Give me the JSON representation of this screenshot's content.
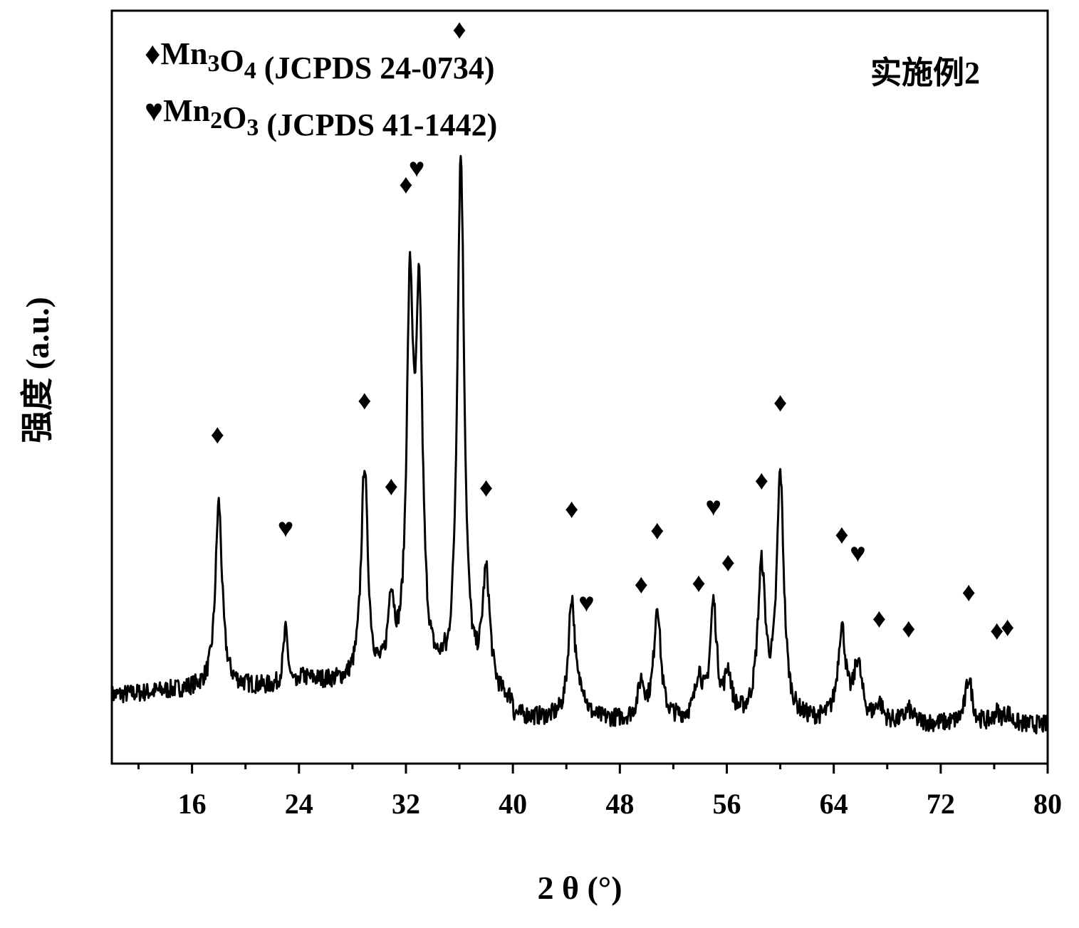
{
  "chart_data": {
    "type": "line",
    "title": "",
    "annotation": "实施例2",
    "xlabel": "2 θ (°)",
    "ylabel": "强度 (a.u.)",
    "xlim": [
      10,
      80
    ],
    "ylim": [
      0,
      100
    ],
    "x_ticks": [
      "16",
      "24",
      "32",
      "40",
      "48",
      "56",
      "64",
      "72",
      "80"
    ],
    "x_tick_values": [
      16,
      24,
      32,
      40,
      48,
      56,
      64,
      72,
      80
    ],
    "y_ticks_shown": false,
    "legend_position": "top-left",
    "legend": [
      {
        "symbol": "♦",
        "formula_parts": [
          [
            "Mn",
            false
          ],
          [
            "3",
            true
          ],
          [
            "O",
            false
          ],
          [
            "4",
            true
          ]
        ],
        "reference": " (JCPDS 24-0734)"
      },
      {
        "symbol": "♥",
        "formula_parts": [
          [
            "Mn",
            false
          ],
          [
            "2",
            true
          ],
          [
            "O",
            false
          ],
          [
            "3",
            true
          ]
        ],
        "reference": " (JCPDS 41-1442)"
      }
    ],
    "peaks": [
      {
        "x": 18.0,
        "y": 26.0,
        "w": 0.3
      },
      {
        "x": 23.0,
        "y": 8.0,
        "w": 0.22
      },
      {
        "x": 28.9,
        "y": 30.5,
        "w": 0.3
      },
      {
        "x": 30.9,
        "y": 11.0,
        "w": 0.28
      },
      {
        "x": 32.3,
        "y": 52.0,
        "w": 0.3
      },
      {
        "x": 33.0,
        "y": 50.0,
        "w": 0.3
      },
      {
        "x": 36.1,
        "y": 76.0,
        "w": 0.32
      },
      {
        "x": 38.0,
        "y": 17.0,
        "w": 0.35
      },
      {
        "x": 44.4,
        "y": 17.0,
        "w": 0.3
      },
      {
        "x": 45.2,
        "y": 3.0,
        "w": 0.3
      },
      {
        "x": 49.6,
        "y": 5.0,
        "w": 0.3
      },
      {
        "x": 50.8,
        "y": 16.0,
        "w": 0.3
      },
      {
        "x": 53.9,
        "y": 6.0,
        "w": 0.3
      },
      {
        "x": 55.0,
        "y": 16.0,
        "w": 0.3
      },
      {
        "x": 56.1,
        "y": 6.0,
        "w": 0.3
      },
      {
        "x": 58.6,
        "y": 21.0,
        "w": 0.35
      },
      {
        "x": 60.0,
        "y": 34.0,
        "w": 0.32
      },
      {
        "x": 64.6,
        "y": 13.0,
        "w": 0.35
      },
      {
        "x": 65.8,
        "y": 8.0,
        "w": 0.35
      },
      {
        "x": 67.4,
        "y": 2.5,
        "w": 0.3
      },
      {
        "x": 69.6,
        "y": 1.8,
        "w": 0.35
      },
      {
        "x": 74.1,
        "y": 6.5,
        "w": 0.3
      },
      {
        "x": 76.2,
        "y": 1.5,
        "w": 0.3
      },
      {
        "x": 77.0,
        "y": 1.5,
        "w": 0.3
      }
    ],
    "phase_markers": [
      {
        "symbol": "♦",
        "phase": "Mn3O4",
        "x": 17.9,
        "y": 41.5
      },
      {
        "symbol": "♥",
        "phase": "Mn2O3",
        "x": 23.0,
        "y": 28.3
      },
      {
        "symbol": "♦",
        "phase": "Mn3O4",
        "x": 28.9,
        "y": 46.3
      },
      {
        "symbol": "♦",
        "phase": "Mn3O4",
        "x": 30.9,
        "y": 34.2
      },
      {
        "symbol": "♦",
        "phase": "Mn3O4",
        "x": 32.0,
        "y": 76.7
      },
      {
        "symbol": "♥",
        "phase": "Mn2O3",
        "x": 32.8,
        "y": 79.0
      },
      {
        "symbol": "♦",
        "phase": "Mn3O4",
        "x": 36.0,
        "y": 98.5
      },
      {
        "symbol": "♦",
        "phase": "Mn3O4",
        "x": 38.0,
        "y": 34.0
      },
      {
        "symbol": "♦",
        "phase": "Mn3O4",
        "x": 44.4,
        "y": 31.0
      },
      {
        "symbol": "♥",
        "phase": "Mn2O3",
        "x": 45.5,
        "y": 17.8
      },
      {
        "symbol": "♦",
        "phase": "Mn3O4",
        "x": 49.6,
        "y": 20.4
      },
      {
        "symbol": "♦",
        "phase": "Mn3O4",
        "x": 50.8,
        "y": 28.0
      },
      {
        "symbol": "♦",
        "phase": "Mn3O4",
        "x": 53.9,
        "y": 20.6
      },
      {
        "symbol": "♥",
        "phase": "Mn2O3",
        "x": 55.0,
        "y": 31.3
      },
      {
        "symbol": "♦",
        "phase": "Mn3O4",
        "x": 56.1,
        "y": 23.5
      },
      {
        "symbol": "♦",
        "phase": "Mn3O4",
        "x": 58.6,
        "y": 35.0
      },
      {
        "symbol": "♦",
        "phase": "Mn3O4",
        "x": 60.0,
        "y": 46.0
      },
      {
        "symbol": "♦",
        "phase": "Mn3O4",
        "x": 64.6,
        "y": 27.4
      },
      {
        "symbol": "♥",
        "phase": "Mn2O3",
        "x": 65.8,
        "y": 24.8
      },
      {
        "symbol": "♦",
        "phase": "Mn3O4",
        "x": 67.4,
        "y": 15.6
      },
      {
        "symbol": "♦",
        "phase": "Mn3O4",
        "x": 69.6,
        "y": 14.2
      },
      {
        "symbol": "♦",
        "phase": "Mn3O4",
        "x": 74.1,
        "y": 19.3
      },
      {
        "symbol": "♦",
        "phase": "Mn3O4",
        "x": 76.2,
        "y": 13.9
      },
      {
        "symbol": "♦",
        "phase": "Mn3O4",
        "x": 77.0,
        "y": 14.4
      }
    ]
  }
}
